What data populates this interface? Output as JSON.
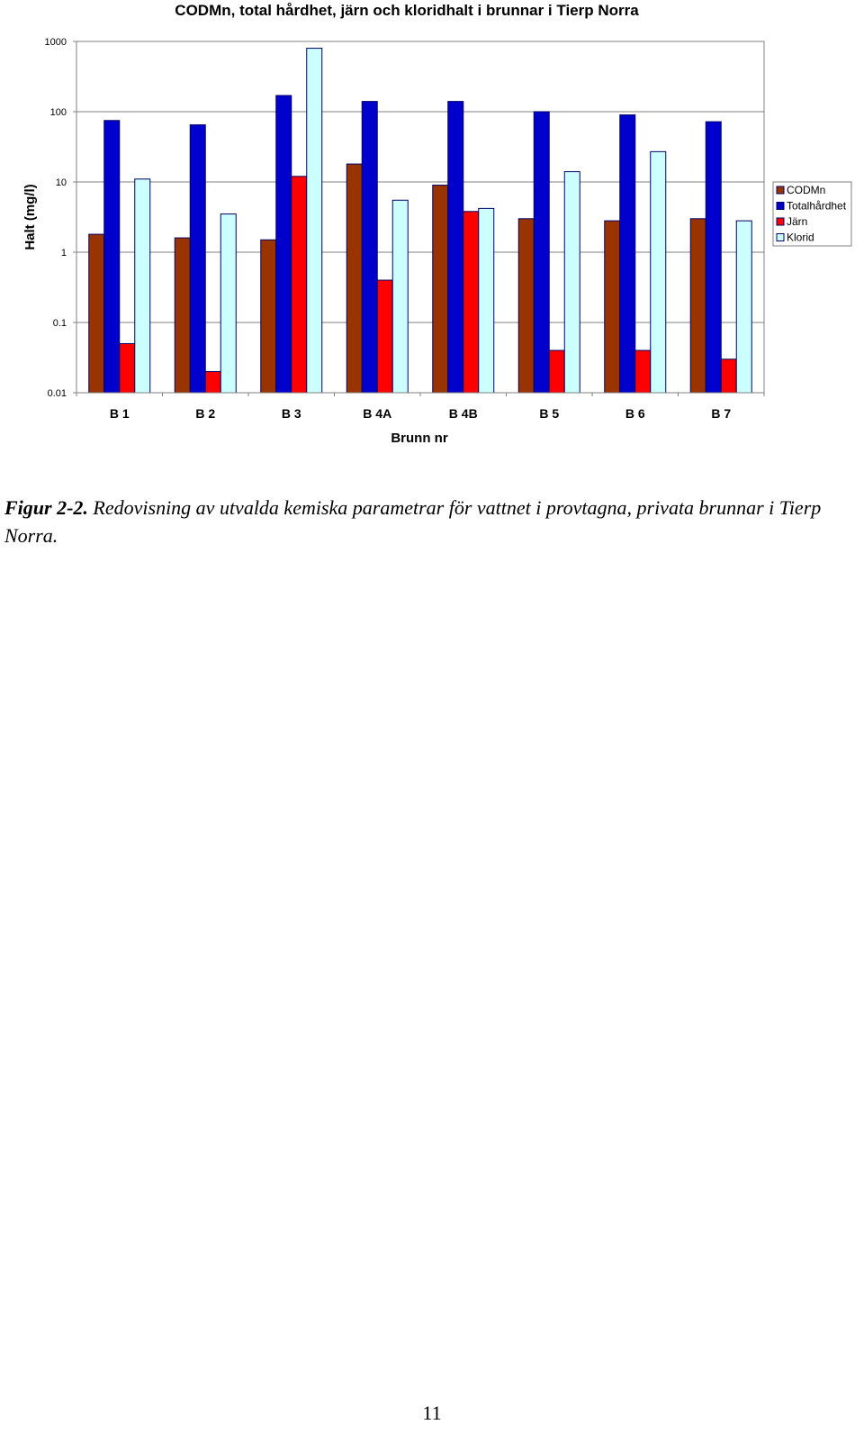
{
  "chart_data": {
    "type": "bar",
    "title": "CODMn, total hårdhet, järn och kloridhalt i brunnar i Tierp Norra",
    "xlabel": "Brunn nr",
    "ylabel": "Halt (mg/l)",
    "yscale": "log",
    "ylim": [
      0.01,
      1000
    ],
    "yticks": [
      "1000",
      "100",
      "10",
      "1",
      "0.1",
      "0.01"
    ],
    "grid": true,
    "legend_position": "right",
    "categories": [
      "B 1",
      "B 2",
      "B 3",
      "B 4A",
      "B 4B",
      "B 5",
      "B 6",
      "B 7"
    ],
    "series": [
      {
        "name": "CODMn",
        "color": "#993300",
        "values": [
          1.8,
          1.6,
          1.5,
          18,
          9,
          3,
          2.8,
          3
        ]
      },
      {
        "name": "Totalhårdhet",
        "color": "#0000cc",
        "values": [
          75,
          65,
          170,
          140,
          140,
          100,
          90,
          72
        ]
      },
      {
        "name": "Järn",
        "color": "#ff0000",
        "values": [
          0.05,
          0.02,
          12,
          0.4,
          3.8,
          0.04,
          0.04,
          0.03
        ]
      },
      {
        "name": "Klorid",
        "color": "#ccffff",
        "values": [
          11,
          3.5,
          800,
          5.5,
          4.2,
          14,
          27,
          2.8
        ]
      }
    ]
  },
  "caption": {
    "label": "Figur 2-2.",
    "text": "Redovisning av utvalda kemiska parametrar för vattnet i provtagna, privata brunnar i Tierp Norra."
  },
  "page_number": "11"
}
